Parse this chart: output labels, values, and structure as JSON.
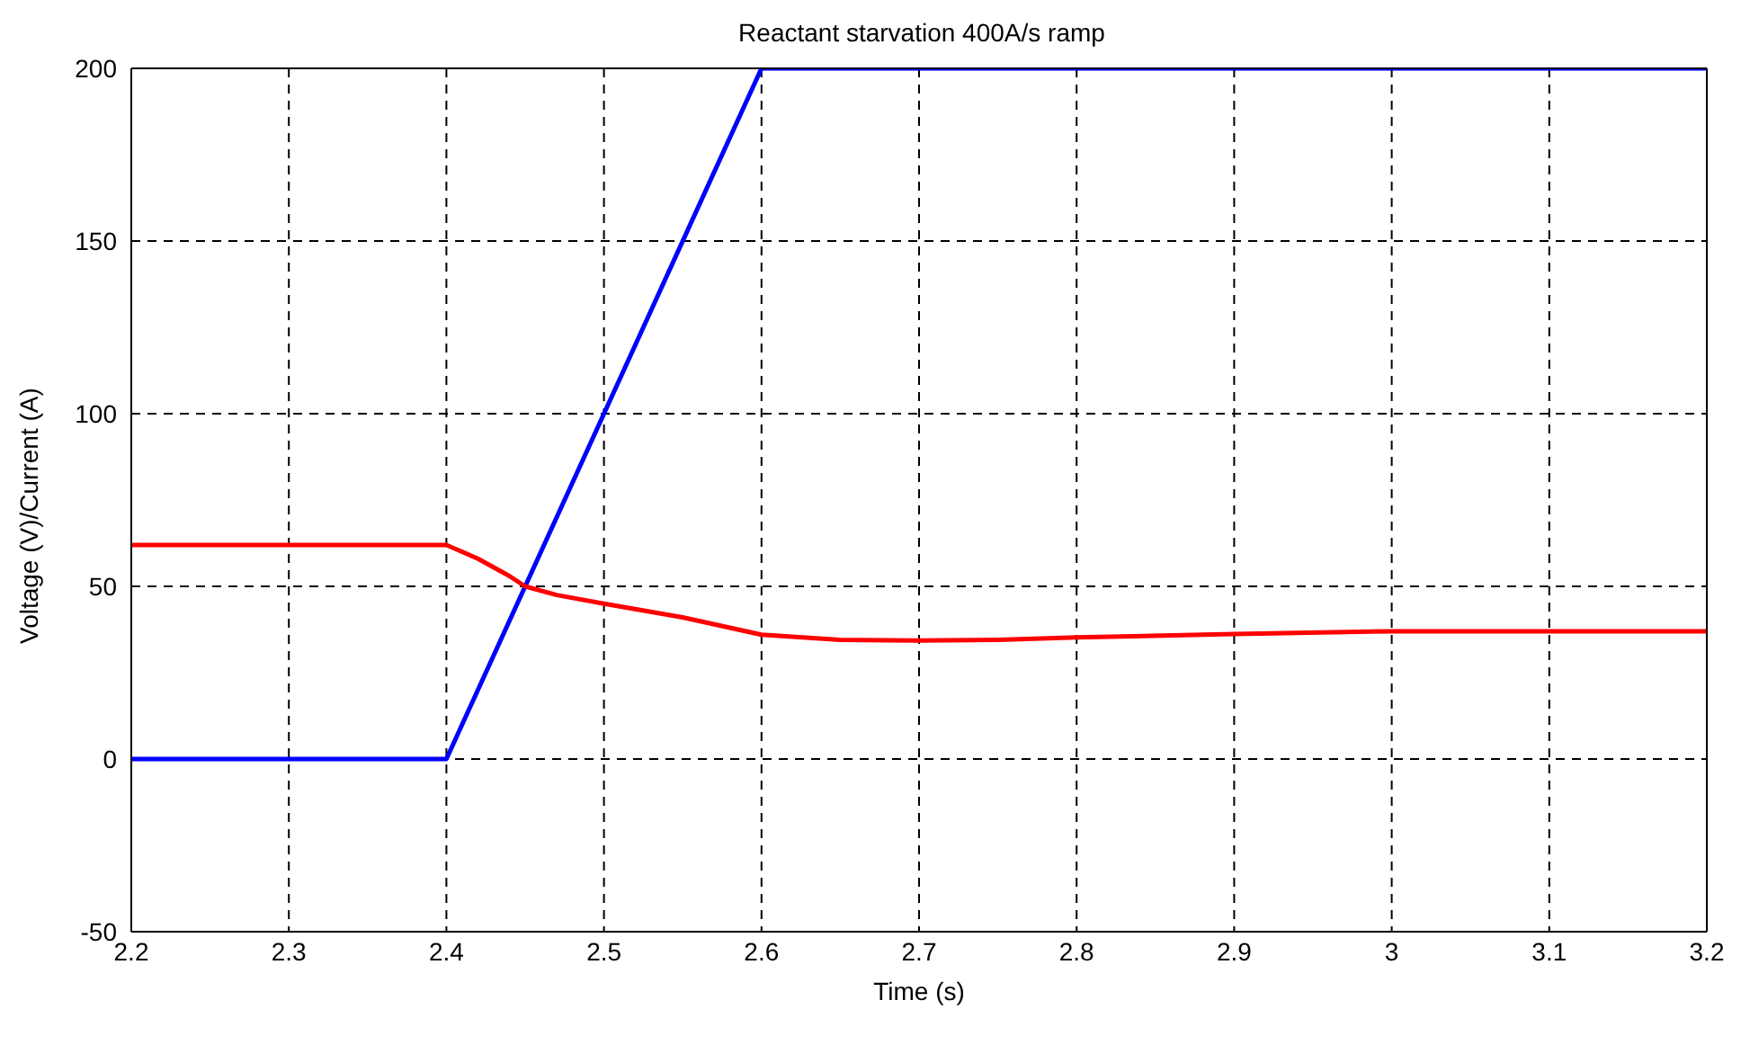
{
  "chart_data": {
    "type": "line",
    "title": "Reactant starvation 400A/s ramp",
    "xlabel": "Time (s)",
    "ylabel": "Voltage (V)/Current (A)",
    "xlim": [
      2.2,
      3.2
    ],
    "xticks": [
      2.2,
      2.3,
      2.4,
      2.5,
      2.6,
      2.7,
      2.8,
      2.9,
      3,
      3.1,
      3.2
    ],
    "ylim": [
      -50,
      200
    ],
    "yticks": [
      -50,
      0,
      50,
      100,
      150,
      200
    ],
    "grid": true,
    "legend": false,
    "marker": "none",
    "line_style": "solid",
    "series": [
      {
        "color": "#0000ff",
        "x": [
          2.2,
          2.4,
          2.6,
          3.2
        ],
        "values": [
          0,
          0,
          200,
          200
        ]
      },
      {
        "color": "#ff0000",
        "x": [
          2.2,
          2.3,
          2.4,
          2.42,
          2.44,
          2.45,
          2.47,
          2.5,
          2.55,
          2.6,
          2.65,
          2.7,
          2.75,
          2.8,
          2.9,
          3,
          3.1,
          3.2
        ],
        "values": [
          62,
          62,
          62,
          58,
          53,
          50,
          47.5,
          45,
          41,
          36,
          34.5,
          34.3,
          34.5,
          35.2,
          36.2,
          37,
          37,
          37
        ]
      }
    ]
  }
}
